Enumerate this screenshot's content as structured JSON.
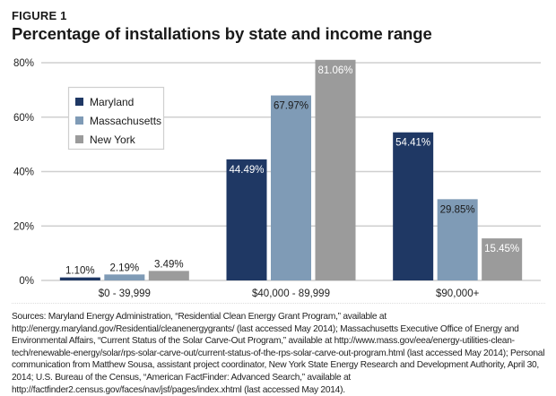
{
  "figure": {
    "label": "FIGURE 1",
    "title": "Percentage of installations by state and income range"
  },
  "chart_data": {
    "type": "bar",
    "title": "Percentage of installations by state and income range",
    "xlabel": "",
    "ylabel": "",
    "categories": [
      "$0 - 39,999",
      "$40,000 - 89,999",
      "$90,000+"
    ],
    "series": [
      {
        "name": "Maryland",
        "color": "#1f3864",
        "values": [
          1.1,
          44.49,
          54.41
        ],
        "labels": [
          "1.10%",
          "44.49%",
          "54.41%"
        ]
      },
      {
        "name": "Massachusetts",
        "color": "#7f9bb6",
        "values": [
          2.19,
          67.97,
          29.85
        ],
        "labels": [
          "2.19%",
          "67.97%",
          "29.85%"
        ]
      },
      {
        "name": "New York",
        "color": "#9b9b9b",
        "values": [
          3.49,
          81.06,
          15.45
        ],
        "labels": [
          "3.49%",
          "81.06%",
          "15.45%"
        ]
      }
    ],
    "yticks": [
      0,
      20,
      40,
      60,
      80
    ],
    "ytick_labels": [
      "0%",
      "20%",
      "40%",
      "60%",
      "80%"
    ],
    "ylim": [
      0,
      80
    ],
    "grid": true,
    "legend": "top-left"
  },
  "sources": "Sources: Maryland Energy Administration, “Residential Clean Energy Grant Program,” available at http://energy.maryland.gov/Residential/cleanenergygrants/ (last accessed May 2014); Massachusetts Executive Office of Energy and Environmental Affairs, “Current Status of the Solar Carve-Out Program,” available at http://www.mass.gov/eea/energy-utilities-clean-tech/renewable-energy/solar/rps-solar-carve-out/current-status-of-the-rps-solar-carve-out-program.html (last accessed May 2014); Personal communication from Matthew Sousa, assistant project coordinator, New York State Energy Research and Development Authority, April 30, 2014; U.S. Bureau of the Census, “American FactFinder: Advanced Search,” available at http://factfinder2.census.gov/faces/nav/jsf/pages/index.xhtml (last accessed May 2014)."
}
